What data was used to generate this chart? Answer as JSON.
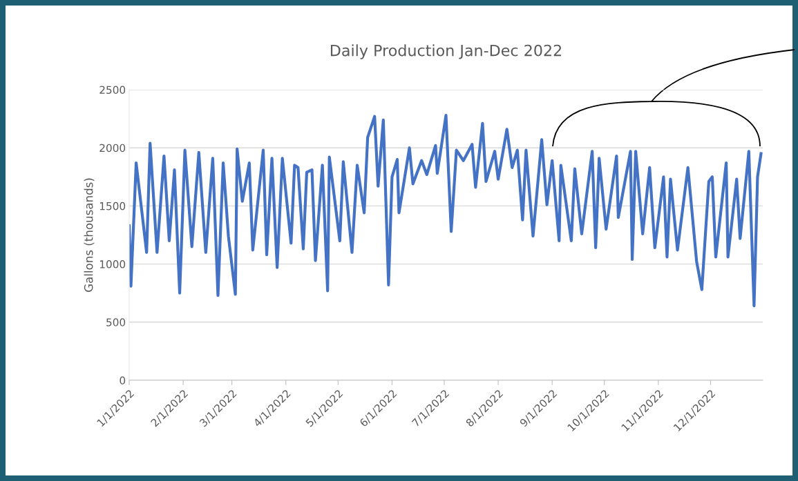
{
  "chart_data": {
    "type": "line",
    "title": "Daily Production Jan-Dec 2022",
    "ylabel": "Gallons (thousands)",
    "x": [
      "2022-01-01",
      "2022-01-02",
      "2022-01-05",
      "2022-01-11",
      "2022-01-13",
      "2022-01-17",
      "2022-01-21",
      "2022-01-24",
      "2022-01-27",
      "2022-01-30",
      "2022-02-02",
      "2022-02-06",
      "2022-02-10",
      "2022-02-14",
      "2022-02-18",
      "2022-02-21",
      "2022-02-24",
      "2022-02-27",
      "2022-03-03",
      "2022-03-04",
      "2022-03-07",
      "2022-03-11",
      "2022-03-13",
      "2022-03-19",
      "2022-03-21",
      "2022-03-24",
      "2022-03-27",
      "2022-03-30",
      "2022-04-04",
      "2022-04-06",
      "2022-04-08",
      "2022-04-11",
      "2022-04-13",
      "2022-04-16",
      "2022-04-18",
      "2022-04-22",
      "2022-04-25",
      "2022-04-26",
      "2022-05-02",
      "2022-05-04",
      "2022-05-09",
      "2022-05-12",
      "2022-05-16",
      "2022-05-18",
      "2022-05-22",
      "2022-05-24",
      "2022-05-27",
      "2022-05-30",
      "2022-06-01",
      "2022-06-04",
      "2022-06-05",
      "2022-06-11",
      "2022-06-13",
      "2022-06-18",
      "2022-06-21",
      "2022-06-26",
      "2022-06-27",
      "2022-07-02",
      "2022-07-05",
      "2022-07-08",
      "2022-07-12",
      "2022-07-17",
      "2022-07-19",
      "2022-07-23",
      "2022-07-25",
      "2022-07-30",
      "2022-08-01",
      "2022-08-06",
      "2022-08-09",
      "2022-08-12",
      "2022-08-15",
      "2022-08-17",
      "2022-08-21",
      "2022-08-26",
      "2022-08-29",
      "2022-09-01",
      "2022-09-05",
      "2022-09-06",
      "2022-09-12",
      "2022-09-14",
      "2022-09-18",
      "2022-09-24",
      "2022-09-26",
      "2022-09-28",
      "2022-10-02",
      "2022-10-08",
      "2022-10-09",
      "2022-10-16",
      "2022-10-17",
      "2022-10-19",
      "2022-10-23",
      "2022-10-27",
      "2022-10-30",
      "2022-11-04",
      "2022-11-06",
      "2022-11-08",
      "2022-11-12",
      "2022-11-18",
      "2022-11-23",
      "2022-11-26",
      "2022-11-30",
      "2022-12-02",
      "2022-12-04",
      "2022-12-10",
      "2022-12-11",
      "2022-12-16",
      "2022-12-18",
      "2022-12-23",
      "2022-12-26",
      "2022-12-28",
      "2022-12-30"
    ],
    "series": [
      {
        "color": "#4472c4",
        "values": [
          1330,
          810,
          1870,
          1100,
          2040,
          1100,
          1930,
          1200,
          1810,
          750,
          1980,
          1150,
          1960,
          1100,
          1910,
          730,
          1870,
          1240,
          740,
          1990,
          1540,
          1870,
          1120,
          1980,
          1080,
          1910,
          970,
          1910,
          1180,
          1850,
          1830,
          1130,
          1790,
          1810,
          1030,
          1850,
          770,
          1920,
          1200,
          1880,
          1100,
          1850,
          1440,
          2090,
          2270,
          1670,
          2240,
          820,
          1750,
          1900,
          1440,
          2000,
          1690,
          1890,
          1770,
          2020,
          1780,
          2280,
          1280,
          1980,
          1890,
          2030,
          1660,
          2210,
          1710,
          1970,
          1730,
          2160,
          1830,
          1980,
          1380,
          1980,
          1240,
          2070,
          1510,
          1890,
          1200,
          1850,
          1200,
          1820,
          1260,
          1970,
          1140,
          1910,
          1300,
          1930,
          1400,
          1970,
          1040,
          1970,
          1260,
          1830,
          1140,
          1750,
          1060,
          1730,
          1120,
          1830,
          1020,
          780,
          1710,
          1750,
          1060,
          1870,
          1060,
          1730,
          1220,
          1970,
          640,
          1750,
          1950
        ]
      }
    ],
    "xlim": [
      "2022-01-01",
      "2022-12-31"
    ],
    "xticks": [
      {
        "value": "2022-01-01",
        "label": "1/1/2022"
      },
      {
        "value": "2022-02-01",
        "label": "2/1/2022"
      },
      {
        "value": "2022-03-01",
        "label": "3/1/2022"
      },
      {
        "value": "2022-04-01",
        "label": "4/1/2022"
      },
      {
        "value": "2022-05-01",
        "label": "5/1/2022"
      },
      {
        "value": "2022-06-01",
        "label": "6/1/2022"
      },
      {
        "value": "2022-07-01",
        "label": "7/1/2022"
      },
      {
        "value": "2022-08-01",
        "label": "8/1/2022"
      },
      {
        "value": "2022-09-01",
        "label": "9/1/2022"
      },
      {
        "value": "2022-10-01",
        "label": "10/1/2022"
      },
      {
        "value": "2022-11-01",
        "label": "11/1/2022"
      },
      {
        "value": "2022-12-01",
        "label": "12/1/2022"
      }
    ],
    "ylim": [
      0,
      2500
    ],
    "yticks": [
      0,
      500,
      1000,
      1500,
      2000,
      2500
    ],
    "grid": "y",
    "marker": "none",
    "line_style": "solid"
  }
}
